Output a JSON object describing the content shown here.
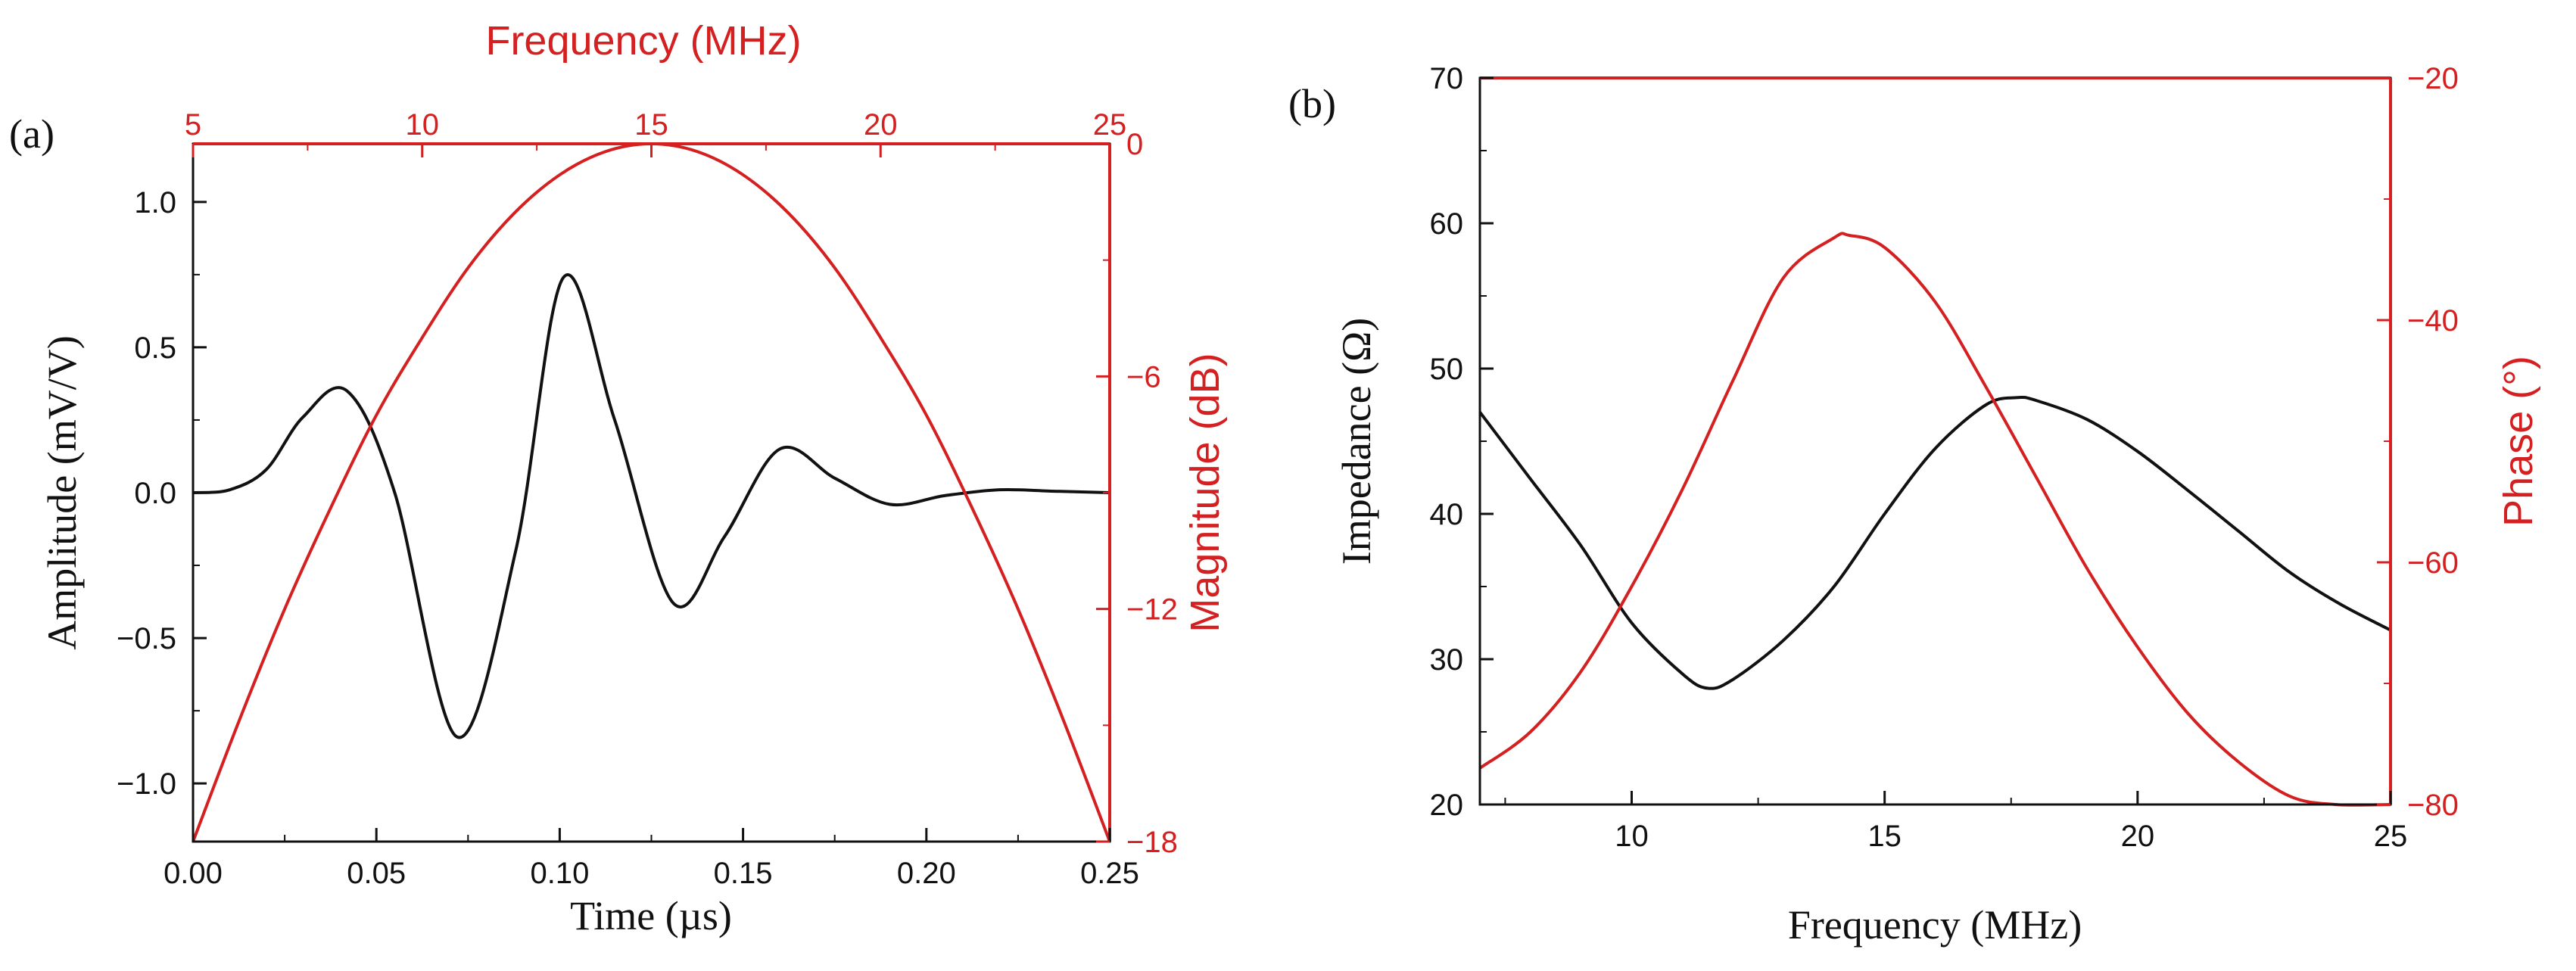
{
  "colors": {
    "black": "#111111",
    "red": "#d42020"
  },
  "chart_data": [
    {
      "id": "a",
      "panel_label": "(a)",
      "type": "line",
      "xlabel": "Time (µs)",
      "ylabel": "Amplitude (mV/V)",
      "top_xlabel": "Frequency (MHz)",
      "right_ylabel": "Magnitude (dB)",
      "xlim": [
        0,
        0.25
      ],
      "ylim": [
        -1.2,
        1.2
      ],
      "top_xlim": [
        5,
        25
      ],
      "right_ylim": [
        -18,
        0
      ],
      "x_ticks": [
        "0.00",
        "0.05",
        "0.10",
        "0.15",
        "0.20",
        "0.25"
      ],
      "y_ticks": [
        "-1.0",
        "-0.5",
        "0.0",
        "0.5",
        "1.0"
      ],
      "top_x_ticks": [
        "5",
        "10",
        "15",
        "20",
        "25"
      ],
      "right_y_ticks": [
        "0",
        "-6",
        "-12",
        "-18"
      ],
      "series": [
        {
          "name": "Amplitude",
          "axis": "left-bottom",
          "color": "#111111",
          "x": [
            0.0,
            0.01,
            0.02,
            0.03,
            0.042,
            0.055,
            0.072,
            0.088,
            0.101,
            0.115,
            0.131,
            0.145,
            0.16,
            0.175,
            0.19,
            0.205,
            0.22,
            0.235,
            0.25
          ],
          "y": [
            0.0,
            0.01,
            0.08,
            0.26,
            0.35,
            0.0,
            -0.84,
            -0.2,
            0.74,
            0.25,
            -0.38,
            -0.15,
            0.15,
            0.05,
            -0.04,
            -0.01,
            0.01,
            0.005,
            0.0
          ]
        },
        {
          "name": "Magnitude",
          "axis": "right-top",
          "color": "#d42020",
          "x": [
            5,
            6,
            7,
            8,
            9,
            10,
            11,
            12,
            13,
            14,
            15,
            16,
            17,
            18,
            19,
            20,
            21,
            22,
            23,
            24,
            25
          ],
          "y": [
            -18,
            -14.9,
            -12.0,
            -9.4,
            -7.0,
            -5.0,
            -3.2,
            -1.8,
            -0.8,
            -0.2,
            0.0,
            -0.2,
            -0.8,
            -1.8,
            -3.2,
            -5.0,
            -7.0,
            -9.4,
            -12.0,
            -14.9,
            -18
          ]
        }
      ]
    },
    {
      "id": "b",
      "panel_label": "(b)",
      "type": "line",
      "xlabel": "Frequency (MHz)",
      "ylabel": "Impedance (Ω)",
      "right_ylabel": "Phase (°)",
      "xlim": [
        7,
        25
      ],
      "ylim": [
        20,
        70
      ],
      "right_ylim": [
        -80,
        -20
      ],
      "x_ticks": [
        "10",
        "15",
        "20",
        "25"
      ],
      "y_ticks": [
        "20",
        "30",
        "40",
        "50",
        "60",
        "70"
      ],
      "right_y_ticks": [
        "-20",
        "-40",
        "-60",
        "-80"
      ],
      "series": [
        {
          "name": "Impedance",
          "axis": "left",
          "color": "#111111",
          "x": [
            7,
            8,
            9,
            10,
            11,
            11.5,
            12,
            13,
            14,
            15,
            16,
            17,
            17.6,
            18,
            19,
            20,
            21,
            22,
            23,
            24,
            25
          ],
          "y": [
            47,
            42.4,
            37.8,
            32.5,
            29.0,
            28.0,
            28.6,
            31.3,
            35.0,
            40.0,
            44.5,
            47.5,
            48.0,
            47.8,
            46.5,
            44.3,
            41.6,
            38.8,
            36.0,
            33.8,
            32
          ]
        },
        {
          "name": "Phase",
          "axis": "right",
          "color": "#d42020",
          "x": [
            7,
            8,
            9,
            10,
            11,
            12,
            13,
            14,
            14.3,
            15,
            16,
            17,
            18,
            19,
            20,
            21,
            22,
            23,
            23.9,
            25
          ],
          "y": [
            -77,
            -74,
            -69,
            -62,
            -54,
            -45,
            -36.5,
            -33.2,
            -33,
            -34,
            -38.5,
            -45.5,
            -53,
            -60.5,
            -67,
            -72.5,
            -76.5,
            -79.3,
            -80,
            -80
          ]
        }
      ]
    }
  ]
}
